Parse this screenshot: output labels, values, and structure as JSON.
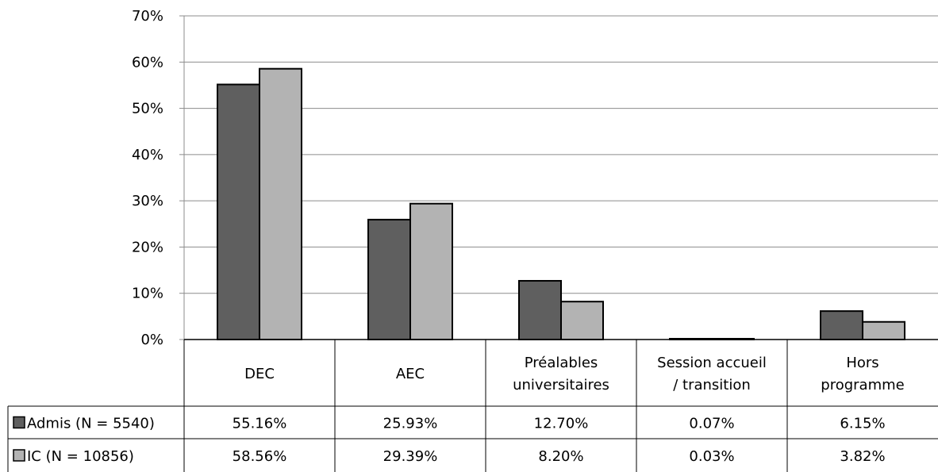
{
  "chart_data": {
    "type": "bar",
    "categories": [
      [
        "DEC"
      ],
      [
        "AEC"
      ],
      [
        "Préalables",
        "universitaires"
      ],
      [
        "Session accueil",
        "/ transition"
      ],
      [
        "Hors",
        "programme"
      ]
    ],
    "series": [
      {
        "name": "Admis (N = 5540)",
        "color": "#5f5f5f",
        "values": [
          55.16,
          25.93,
          12.7,
          0.07,
          6.15
        ],
        "labels": [
          "55.16%",
          "25.93%",
          "12.70%",
          "0.07%",
          "6.15%"
        ]
      },
      {
        "name": "IC (N = 10856)",
        "color": "#b3b3b3",
        "values": [
          58.56,
          29.39,
          8.2,
          0.03,
          3.82
        ],
        "labels": [
          "58.56%",
          "29.39%",
          "8.20%",
          "0.03%",
          "3.82%"
        ]
      }
    ],
    "yticks": [
      "0%",
      "10%",
      "20%",
      "30%",
      "40%",
      "50%",
      "60%",
      "70%"
    ],
    "ylim": [
      0,
      70
    ],
    "grid": true,
    "legend": "data-table",
    "title": "",
    "xlabel": "",
    "ylabel": ""
  }
}
